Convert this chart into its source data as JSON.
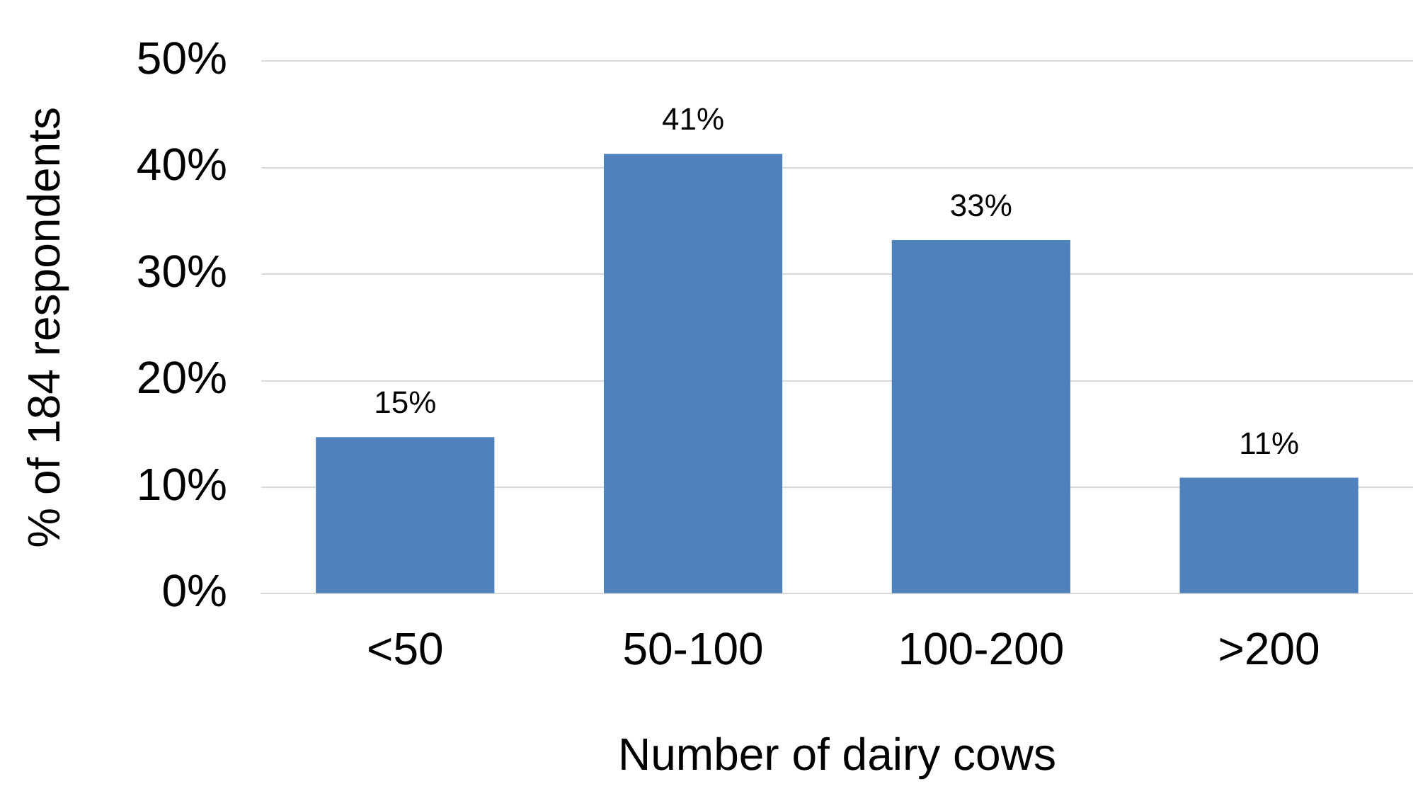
{
  "chart_data": {
    "type": "bar",
    "xlabel": "Number of dairy cows",
    "ylabel": "% of 184 respondents",
    "categories": [
      "<50",
      "50-100",
      "100-200",
      ">200"
    ],
    "values": [
      14.7,
      41.3,
      33.2,
      10.9
    ],
    "value_labels": [
      "15%",
      "41%",
      "33%",
      "11%"
    ],
    "color": "#4f81bd",
    "ylim": [
      0,
      50
    ],
    "yticks": [
      {
        "value": 0,
        "label": "0%"
      },
      {
        "value": 10,
        "label": "10%"
      },
      {
        "value": 20,
        "label": "20%"
      },
      {
        "value": 30,
        "label": "30%"
      },
      {
        "value": 40,
        "label": "40%"
      },
      {
        "value": 50,
        "label": "50%"
      }
    ],
    "grid": "y"
  }
}
